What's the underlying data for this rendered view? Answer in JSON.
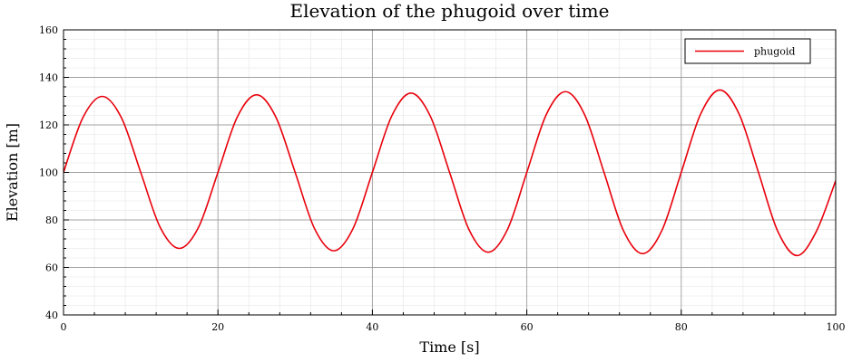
{
  "chart_data": {
    "type": "line",
    "title": "Elevation of the phugoid over time",
    "xlabel": "Time [s]",
    "ylabel": "Elevation [m]",
    "xlim": [
      0,
      100
    ],
    "ylim": [
      40,
      160
    ],
    "xticks": [
      0,
      20,
      40,
      60,
      80,
      100
    ],
    "yticks": [
      40,
      60,
      80,
      100,
      120,
      140,
      160
    ],
    "grid": true,
    "minor_grid": true,
    "legend_position": "top-right",
    "series": [
      {
        "name": "phugoid",
        "color": "#e8000b",
        "x": [
          0,
          2.5,
          5,
          7.5,
          10,
          12.5,
          15,
          17.5,
          20,
          22.5,
          25,
          27.5,
          30,
          32.5,
          35,
          37.5,
          40,
          42.5,
          45,
          47.5,
          50,
          52.5,
          55,
          57.5,
          60,
          62.5,
          65,
          67.5,
          70,
          72.5,
          75,
          77.5,
          80,
          82.5,
          85,
          87.5,
          90,
          92.5,
          95,
          97.5,
          100
        ],
        "y": [
          100,
          123,
          132,
          123,
          100,
          77,
          68,
          77,
          100,
          123.3,
          132.7,
          123.3,
          100,
          76.4,
          67,
          76.4,
          100,
          123.7,
          133.4,
          123.7,
          100,
          76,
          66.4,
          76,
          100,
          124.2,
          134,
          124.2,
          100,
          75.6,
          65.8,
          75.6,
          100,
          124.5,
          134.7,
          124.5,
          100,
          75.2,
          65,
          75.2,
          96.5
        ]
      }
    ]
  }
}
